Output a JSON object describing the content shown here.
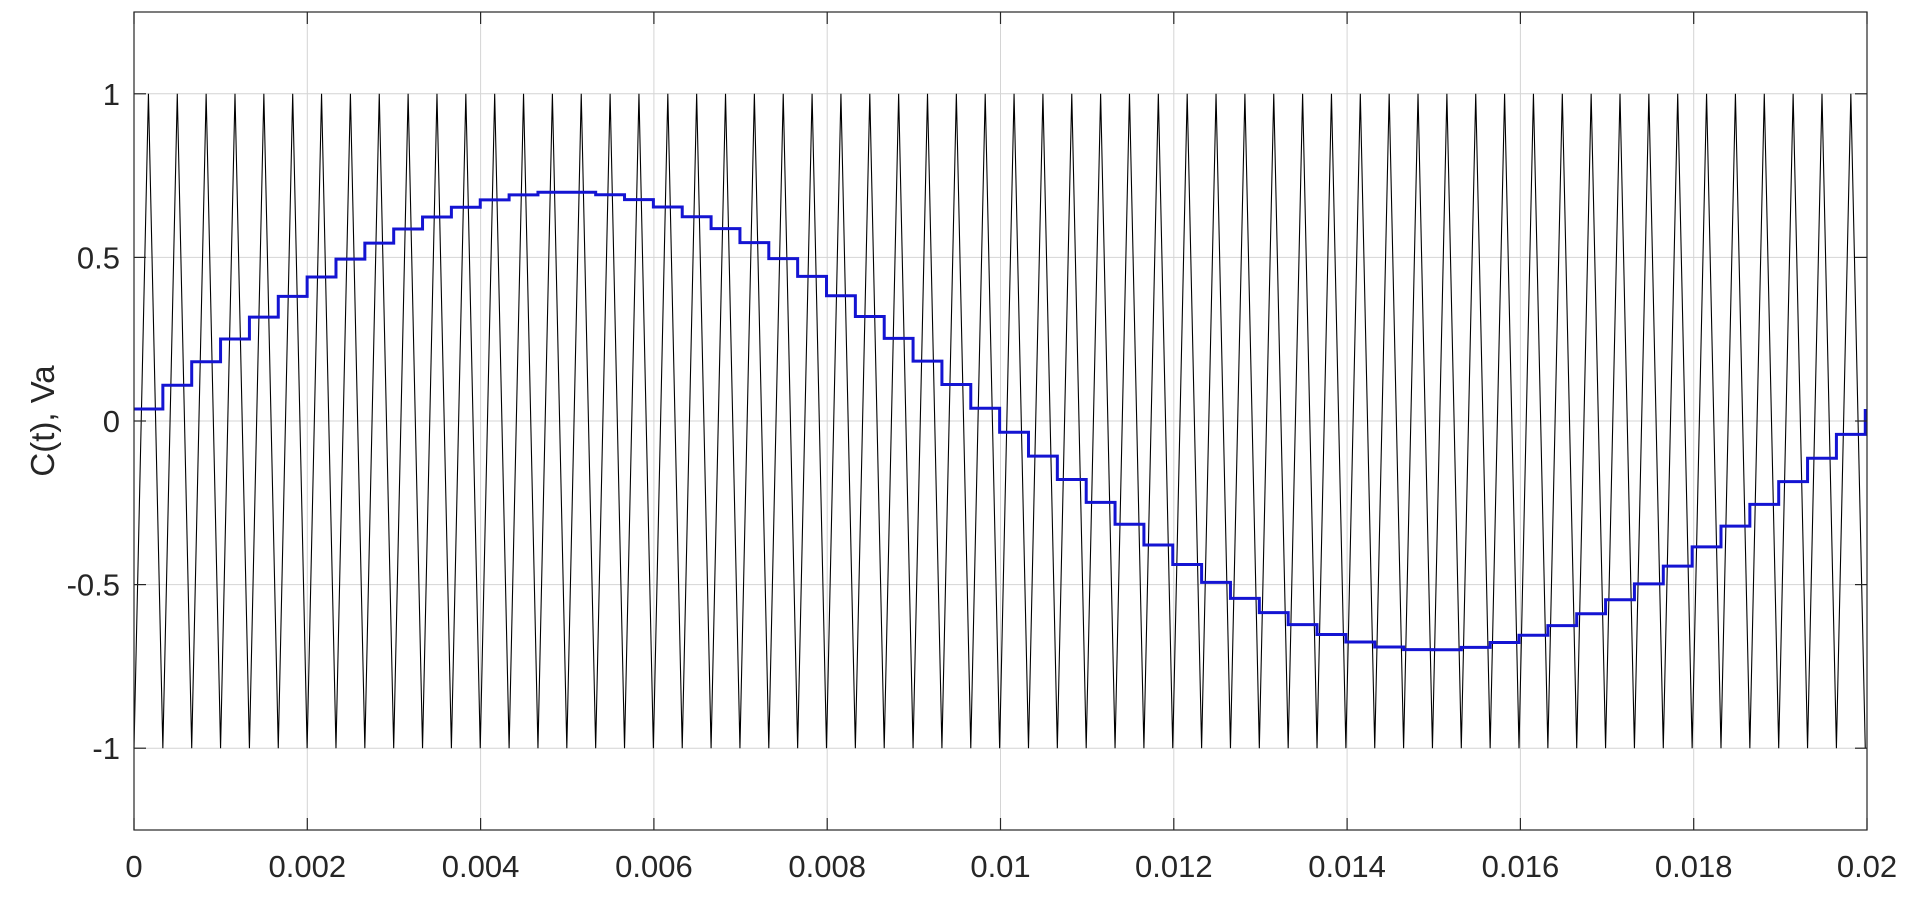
{
  "chart_data": {
    "type": "line",
    "title": "",
    "xlabel": "",
    "ylabel": "C(t), Va",
    "xlim": [
      0,
      0.02
    ],
    "ylim": [
      -1.25,
      1.25
    ],
    "grid": true,
    "legend": "none",
    "x_ticks": [
      0,
      0.002,
      0.004,
      0.006,
      0.008,
      0.01,
      0.012,
      0.014,
      0.016,
      0.018,
      0.02
    ],
    "x_tick_labels": [
      "0",
      "0.002",
      "0.004",
      "0.006",
      "0.008",
      "0.01",
      "0.012",
      "0.014",
      "0.016",
      "0.018",
      "0.02"
    ],
    "y_ticks": [
      1,
      0.5,
      0,
      -0.5,
      -1
    ],
    "y_tick_labels": [
      "1",
      "0.5",
      "0",
      "-0.5",
      "-1"
    ],
    "series": [
      {
        "kind": "triangle-carrier",
        "color": "#000000",
        "amplitude": 1,
        "period": 0.000333,
        "start": {
          "x": 0,
          "y": -1
        },
        "x_range": [
          0,
          0.02
        ]
      },
      {
        "kind": "sampled-reference",
        "color": "#1414d2",
        "amplitude": 0.7,
        "frequency_hz": 50,
        "sample_period": 0.000333,
        "x_range": [
          0,
          0.02
        ]
      }
    ]
  }
}
